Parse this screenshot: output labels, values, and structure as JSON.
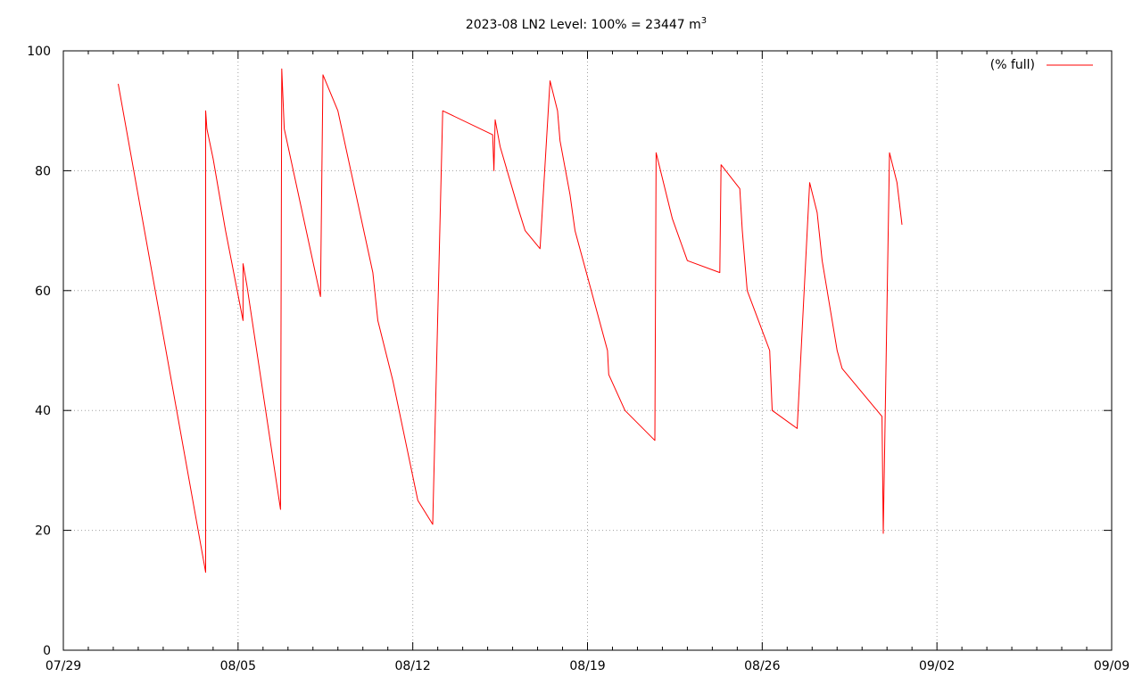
{
  "chart_data": {
    "type": "line",
    "title": "2023-08 LN2 Level: 100% = 23447 m",
    "title_superscript": "3",
    "xlabel": "",
    "ylabel": "",
    "x_ticks": [
      "07/29",
      "08/05",
      "08/12",
      "08/19",
      "08/26",
      "09/02",
      "09/09"
    ],
    "y_ticks": [
      "0",
      "20",
      "40",
      "60",
      "80",
      "100"
    ],
    "xlim": [
      0,
      42
    ],
    "ylim": [
      0,
      100
    ],
    "grid": true,
    "legend_position": "top-right",
    "series": [
      {
        "name": "(% full)",
        "color": "#ff0000",
        "x": [
          2.2,
          5.7,
          5.7,
          5.75,
          6.0,
          6.5,
          7.2,
          7.2,
          7.35,
          8.7,
          8.75,
          8.8,
          8.85,
          10.3,
          10.4,
          11.0,
          12.4,
          12.6,
          13.2,
          13.8,
          14.2,
          14.8,
          15.2,
          17.2,
          17.25,
          17.3,
          17.5,
          18.2,
          18.5,
          19.1,
          19.5,
          19.8,
          19.9,
          20.3,
          20.5,
          21.8,
          21.85,
          22.5,
          23.7,
          23.75,
          24.4,
          25.0,
          26.3,
          26.35,
          27.1,
          27.2,
          27.4,
          28.3,
          28.4,
          29.4,
          29.9,
          30.2,
          30.4,
          31.0,
          31.2,
          32.8,
          32.85,
          33.1,
          33.4,
          33.6
        ],
        "y": [
          94.5,
          13,
          90,
          87,
          82,
          70,
          55,
          64.5,
          61,
          23.5,
          97,
          92,
          87,
          59,
          96,
          90,
          63,
          55,
          45,
          33,
          25,
          21,
          90,
          86,
          80,
          88.5,
          84,
          74,
          70,
          67,
          95,
          90,
          85,
          76,
          70,
          50,
          46,
          40,
          35,
          83,
          72,
          65,
          63,
          81,
          77,
          70,
          60,
          50,
          40,
          37,
          78,
          73,
          65,
          50,
          47,
          39,
          19.5,
          83,
          78,
          71
        ]
      }
    ]
  }
}
